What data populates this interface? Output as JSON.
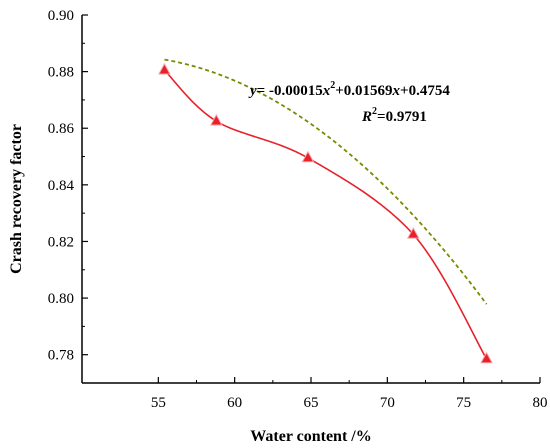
{
  "chart_data": {
    "type": "scatter",
    "title": "",
    "xlabel": "Water content /%",
    "ylabel": "Crash recovery factor",
    "xlim": [
      50,
      80
    ],
    "ylim": [
      0.77,
      0.9
    ],
    "xticks": [
      55,
      60,
      65,
      70,
      75,
      80
    ],
    "yticks": [
      0.78,
      0.8,
      0.82,
      0.84,
      0.86,
      0.88,
      0.9
    ],
    "ytick_labels": [
      "0.78",
      "0.80",
      "0.82",
      "0.84",
      "0.86",
      "0.88",
      "0.90"
    ],
    "grid": false,
    "series": [
      {
        "style": "markers-with-smooth-line",
        "marker": "triangle",
        "color": "#e8202a",
        "x": [
          55.4,
          58.8,
          64.8,
          71.7,
          76.5
        ],
        "y": [
          0.8805,
          0.8625,
          0.8495,
          0.8225,
          0.7785
        ]
      }
    ],
    "fit": {
      "style": "dashed",
      "color": "#7a8a00",
      "coefficients": {
        "a": -0.00015,
        "b": 0.01569,
        "c": 0.4754
      },
      "x_range": [
        55.4,
        76.5
      ]
    },
    "annotations": {
      "equation": {
        "prefix": "y",
        "eq_part1": "= -0.00015",
        "x_sym": "x",
        "sup2": "2",
        "eq_part2": "+0.01569",
        "x_sym2": "x",
        "eq_part3": "+0.4754"
      },
      "r_squared": {
        "prefix": "R",
        "sup2": "2",
        "value": "=0.9791"
      }
    }
  }
}
